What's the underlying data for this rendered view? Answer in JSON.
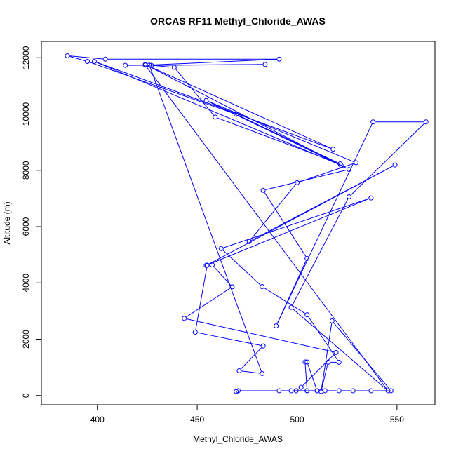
{
  "chart_data": {
    "type": "scatter",
    "title": "ORCAS RF11 Methyl_Chloride_AWAS",
    "xlabel": "Methyl_Chloride_AWAS",
    "ylabel": "Altitude (m)",
    "xlim": [
      372,
      569
    ],
    "ylim": [
      -330,
      12580
    ],
    "xticks": [
      400,
      450,
      500,
      550
    ],
    "yticks": [
      0,
      2000,
      4000,
      6000,
      8000,
      10000,
      12000
    ],
    "grid": false,
    "connected": true,
    "marker": "open-circle",
    "color": "#0000ff",
    "series": [
      {
        "points": [
          [
            469.5,
            140
          ],
          [
            470.5,
            170
          ],
          [
            491,
            170
          ],
          [
            497,
            170
          ],
          [
            505,
            170
          ],
          [
            510,
            170
          ],
          [
            514,
            170
          ],
          [
            521,
            170
          ],
          [
            528,
            170
          ],
          [
            537,
            170
          ],
          [
            547,
            170
          ],
          [
            517.5,
            2650
          ],
          [
            512,
            140
          ],
          [
            515.5,
            1180
          ],
          [
            521,
            1180
          ],
          [
            505,
            2870
          ],
          [
            482.5,
            3870
          ],
          [
            462,
            5220
          ],
          [
            537,
            7020
          ],
          [
            454.5,
            4620
          ],
          [
            549,
            8190
          ],
          [
            476,
            5470
          ],
          [
            500,
            7560
          ],
          [
            529.5,
            8270
          ],
          [
            454.5,
            10480
          ],
          [
            522,
            8180
          ],
          [
            398.5,
            11870
          ],
          [
            518,
            8750
          ],
          [
            424,
            11760
          ],
          [
            526,
            8030
          ],
          [
            483,
            7290
          ],
          [
            505,
            4870
          ],
          [
            489.5,
            2470
          ],
          [
            538,
            9720
          ],
          [
            564.5,
            9720
          ],
          [
            526,
            7060
          ],
          [
            497,
            3130
          ],
          [
            545.5,
            170
          ],
          [
            424,
            11740
          ],
          [
            414,
            11730
          ],
          [
            484,
            11760
          ],
          [
            427,
            11730
          ],
          [
            438.5,
            11660
          ],
          [
            459,
            9890
          ],
          [
            521.5,
            8230
          ],
          [
            469.5,
            9990
          ],
          [
            395,
            11870
          ],
          [
            385,
            12070
          ],
          [
            404,
            11950
          ],
          [
            491,
            11950
          ],
          [
            426,
            11740
          ],
          [
            482.5,
            780
          ],
          [
            471,
            880
          ],
          [
            483,
            1760
          ],
          [
            449,
            2250
          ],
          [
            455,
            4630
          ],
          [
            457.5,
            4640
          ],
          [
            467.5,
            3860
          ],
          [
            443.5,
            2740
          ],
          [
            519.5,
            1530
          ],
          [
            502,
            290
          ],
          [
            499.5,
            170
          ],
          [
            510,
            170
          ],
          [
            505,
            1190
          ],
          [
            504,
            1190
          ],
          [
            505,
            170
          ]
        ]
      }
    ]
  }
}
